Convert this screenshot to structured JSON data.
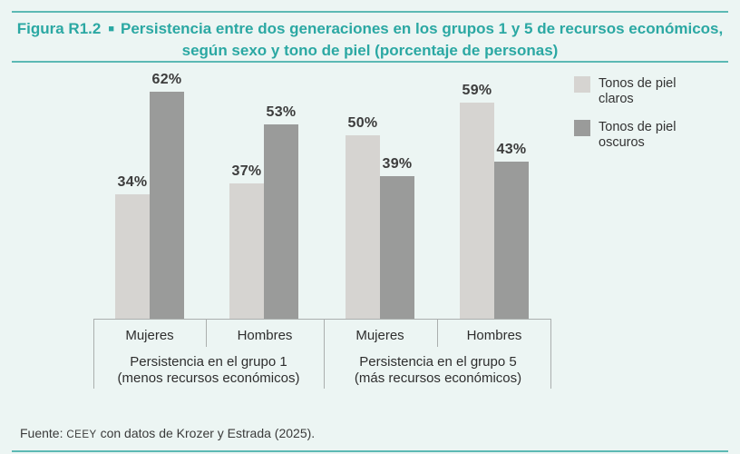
{
  "figure": {
    "label": "Figura R1.2",
    "separator": "■",
    "title_line1": "Persistencia entre dos generaciones en los grupos 1 y 5 de recursos económicos,",
    "title_line2": "según sexo y tono de piel (porcentaje de personas)"
  },
  "chart_data": {
    "type": "bar",
    "title": "Persistencia entre dos generaciones en los grupos 1 y 5 de recursos económicos, según sexo y tono de piel (porcentaje de personas)",
    "categories": [
      "Mujeres (grupo 1)",
      "Hombres (grupo 1)",
      "Mujeres (grupo 5)",
      "Hombres (grupo 5)"
    ],
    "group_axis": [
      {
        "label_line1": "Persistencia en el grupo 1",
        "label_line2": "(menos recursos económicos)",
        "categories": [
          "Mujeres",
          "Hombres"
        ]
      },
      {
        "label_line1": "Persistencia en el grupo 5",
        "label_line2": "(más recursos económicos)",
        "categories": [
          "Mujeres",
          "Hombres"
        ]
      }
    ],
    "series": [
      {
        "name": "Tonos de piel claros",
        "color": "#d6d4d1",
        "values": [
          34,
          37,
          50,
          59
        ]
      },
      {
        "name": "Tonos de piel oscuros",
        "color": "#9a9b9a",
        "values": [
          62,
          53,
          39,
          43
        ]
      }
    ],
    "value_suffix": "%",
    "data_labels": true,
    "y_axis_visible": false,
    "grid": false,
    "ylim": [
      0,
      65
    ],
    "legend_position": "top-right"
  },
  "legend": {
    "items": [
      {
        "line1": "Tonos de piel",
        "line2": "claros"
      },
      {
        "line1": "Tonos de piel",
        "line2": "oscuros"
      }
    ]
  },
  "footer": {
    "prefix": "Fuente: ",
    "org": "CEEY",
    "rest": " con datos de Krozer y Estrada (2025)."
  },
  "colors": {
    "accent_teal_text": "#2ba8a3",
    "rule_teal": "#5cb9b4",
    "background": "#ecf5f3",
    "bar_light": "#d6d4d1",
    "bar_dark": "#9a9b9a",
    "axis_line": "#abafae",
    "label_text": "#3c3c3c"
  }
}
